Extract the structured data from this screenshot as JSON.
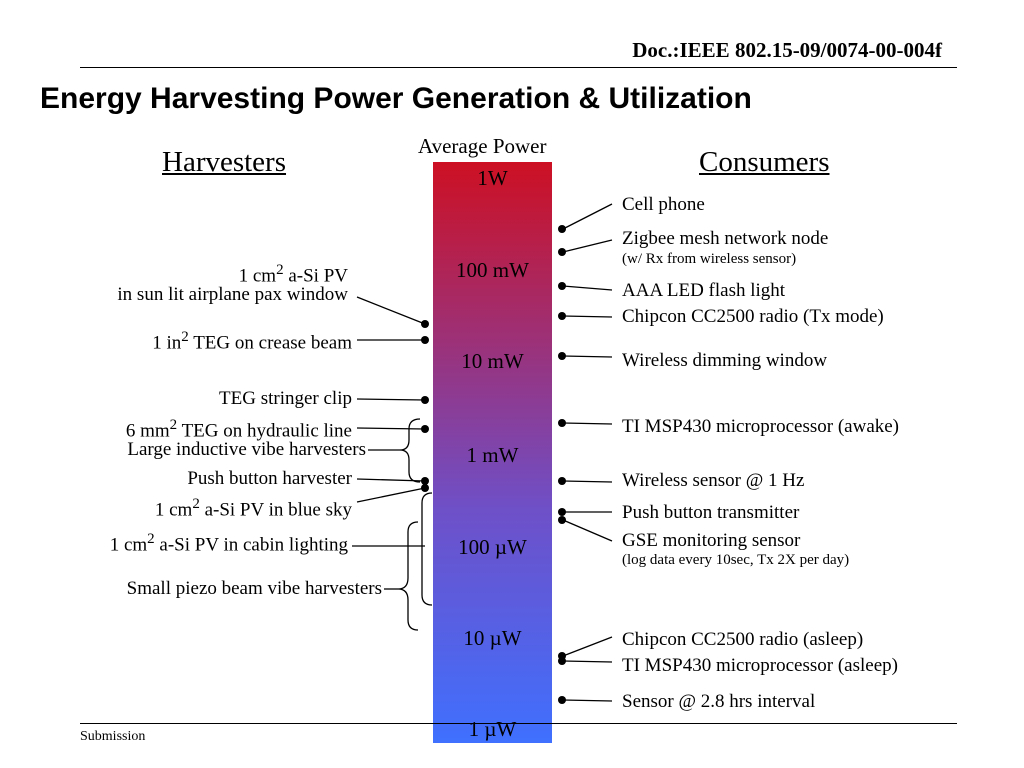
{
  "doc_id": "Doc.:IEEE 802.15-09/0074-00-004f",
  "title": "Energy Harvesting Power Generation & Utilization",
  "axis_title": "Average Power",
  "harvesters_heading": "Harvesters",
  "consumers_heading": "Consumers",
  "ticks": [
    "1W",
    "100 mW",
    "10 mW",
    "1 mW",
    "100 µW",
    "10 µW",
    "1 µW"
  ],
  "harvesters": {
    "si_pv_window": {
      "l1a": "1 cm",
      "sup": "2",
      "l1b": " a-Si PV",
      "l2": "in sun lit airplane pax window"
    },
    "teg_crease": {
      "a": "1 in",
      "sup": "2",
      "b": " TEG on crease beam"
    },
    "teg_stringer": "TEG stringer clip",
    "teg_hydraulic": {
      "a": "6 mm",
      "sup": "2",
      "b": " TEG on hydraulic line"
    },
    "inductive_vibe": "Large inductive vibe harvesters",
    "push_button": "Push button harvester",
    "si_pv_sky": {
      "a": "1 cm",
      "sup": "2",
      "b": " a-Si PV in blue sky"
    },
    "si_pv_cabin": {
      "a": "1 cm",
      "sup": "2",
      "b": " a-Si PV in cabin lighting"
    },
    "piezo_vibe": "Small piezo beam vibe harvesters"
  },
  "consumers": {
    "cell_phone": "Cell phone",
    "zigbee": "Zigbee mesh network node",
    "zigbee_sub": "(w/ Rx from wireless sensor)",
    "aaa_led": "AAA LED flash light",
    "cc2500_tx": "Chipcon CC2500 radio (Tx mode)",
    "dimming": "Wireless dimming window",
    "msp430_awake": "TI MSP430 microprocessor (awake)",
    "wireless_sensor": "Wireless sensor @ 1 Hz",
    "push_tx": "Push button transmitter",
    "gse": "GSE monitoring sensor",
    "gse_sub": "(log data every 10sec, Tx 2X per day)",
    "cc2500_sleep": "Chipcon CC2500 radio (asleep)",
    "msp430_sleep": "TI MSP430 microprocessor (asleep)",
    "sensor_interval": "Sensor @ 2.8 hrs interval"
  },
  "footer": "Submission"
}
